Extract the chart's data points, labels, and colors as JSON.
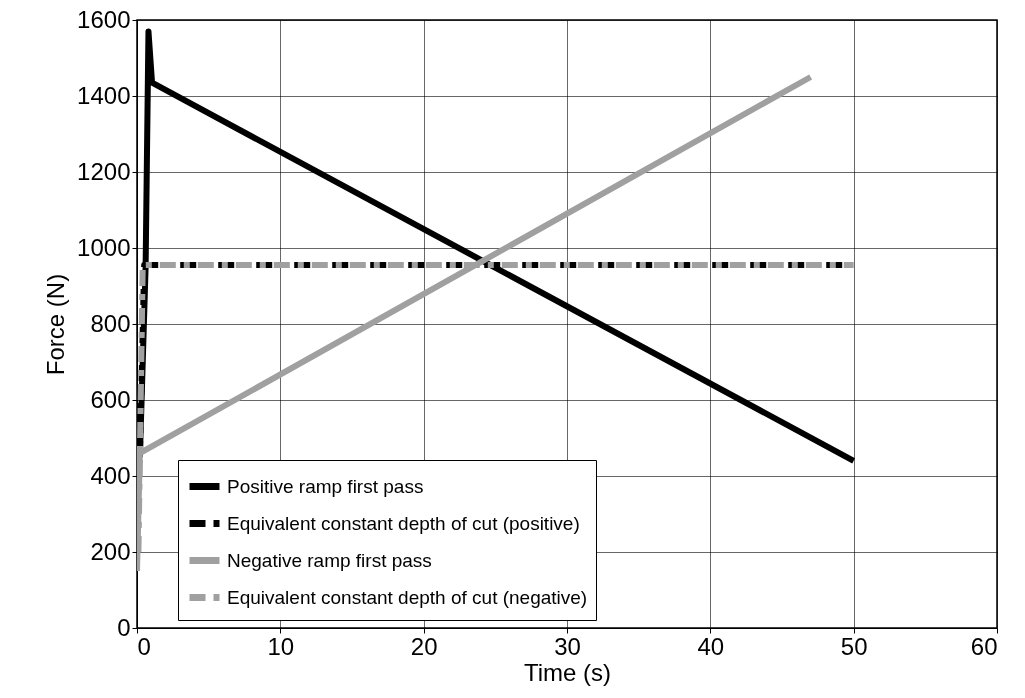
{
  "chart_data": {
    "type": "line",
    "xlabel": "Time (s)",
    "ylabel": "Force (N)",
    "xlim": [
      0,
      60
    ],
    "xticks": [
      0,
      10,
      20,
      30,
      40,
      50,
      60
    ],
    "ylim": [
      0,
      1600
    ],
    "yticks": [
      0,
      200,
      400,
      600,
      800,
      1000,
      1200,
      1400,
      1600
    ],
    "grid": true,
    "legend": "bottom left",
    "series": [
      {
        "name": "Positive ramp first pass",
        "color": "#000000",
        "line_style": "solid",
        "x": [
          0.2,
          0.6,
          0.8,
          1.05,
          50
        ],
        "values": [
          450,
          950,
          1570,
          1435,
          440
        ]
      },
      {
        "name": "Equivalent constant depth of cut (positive)",
        "color": "#000000",
        "line_style": "dashed",
        "x": [
          0.2,
          0.5,
          49.5
        ],
        "values": [
          450,
          955,
          955
        ]
      },
      {
        "name": "Negative ramp first pass",
        "color": "#a0a0a0",
        "line_style": "solid",
        "x": [
          0,
          0.2,
          47
        ],
        "values": [
          150,
          460,
          1450
        ]
      },
      {
        "name": "Equivalent constant depth of cut (negative)",
        "color": "#a0a0a0",
        "line_style": "dashed",
        "x": [
          0.1,
          0.4,
          50
        ],
        "values": [
          200,
          955,
          955
        ]
      }
    ]
  }
}
